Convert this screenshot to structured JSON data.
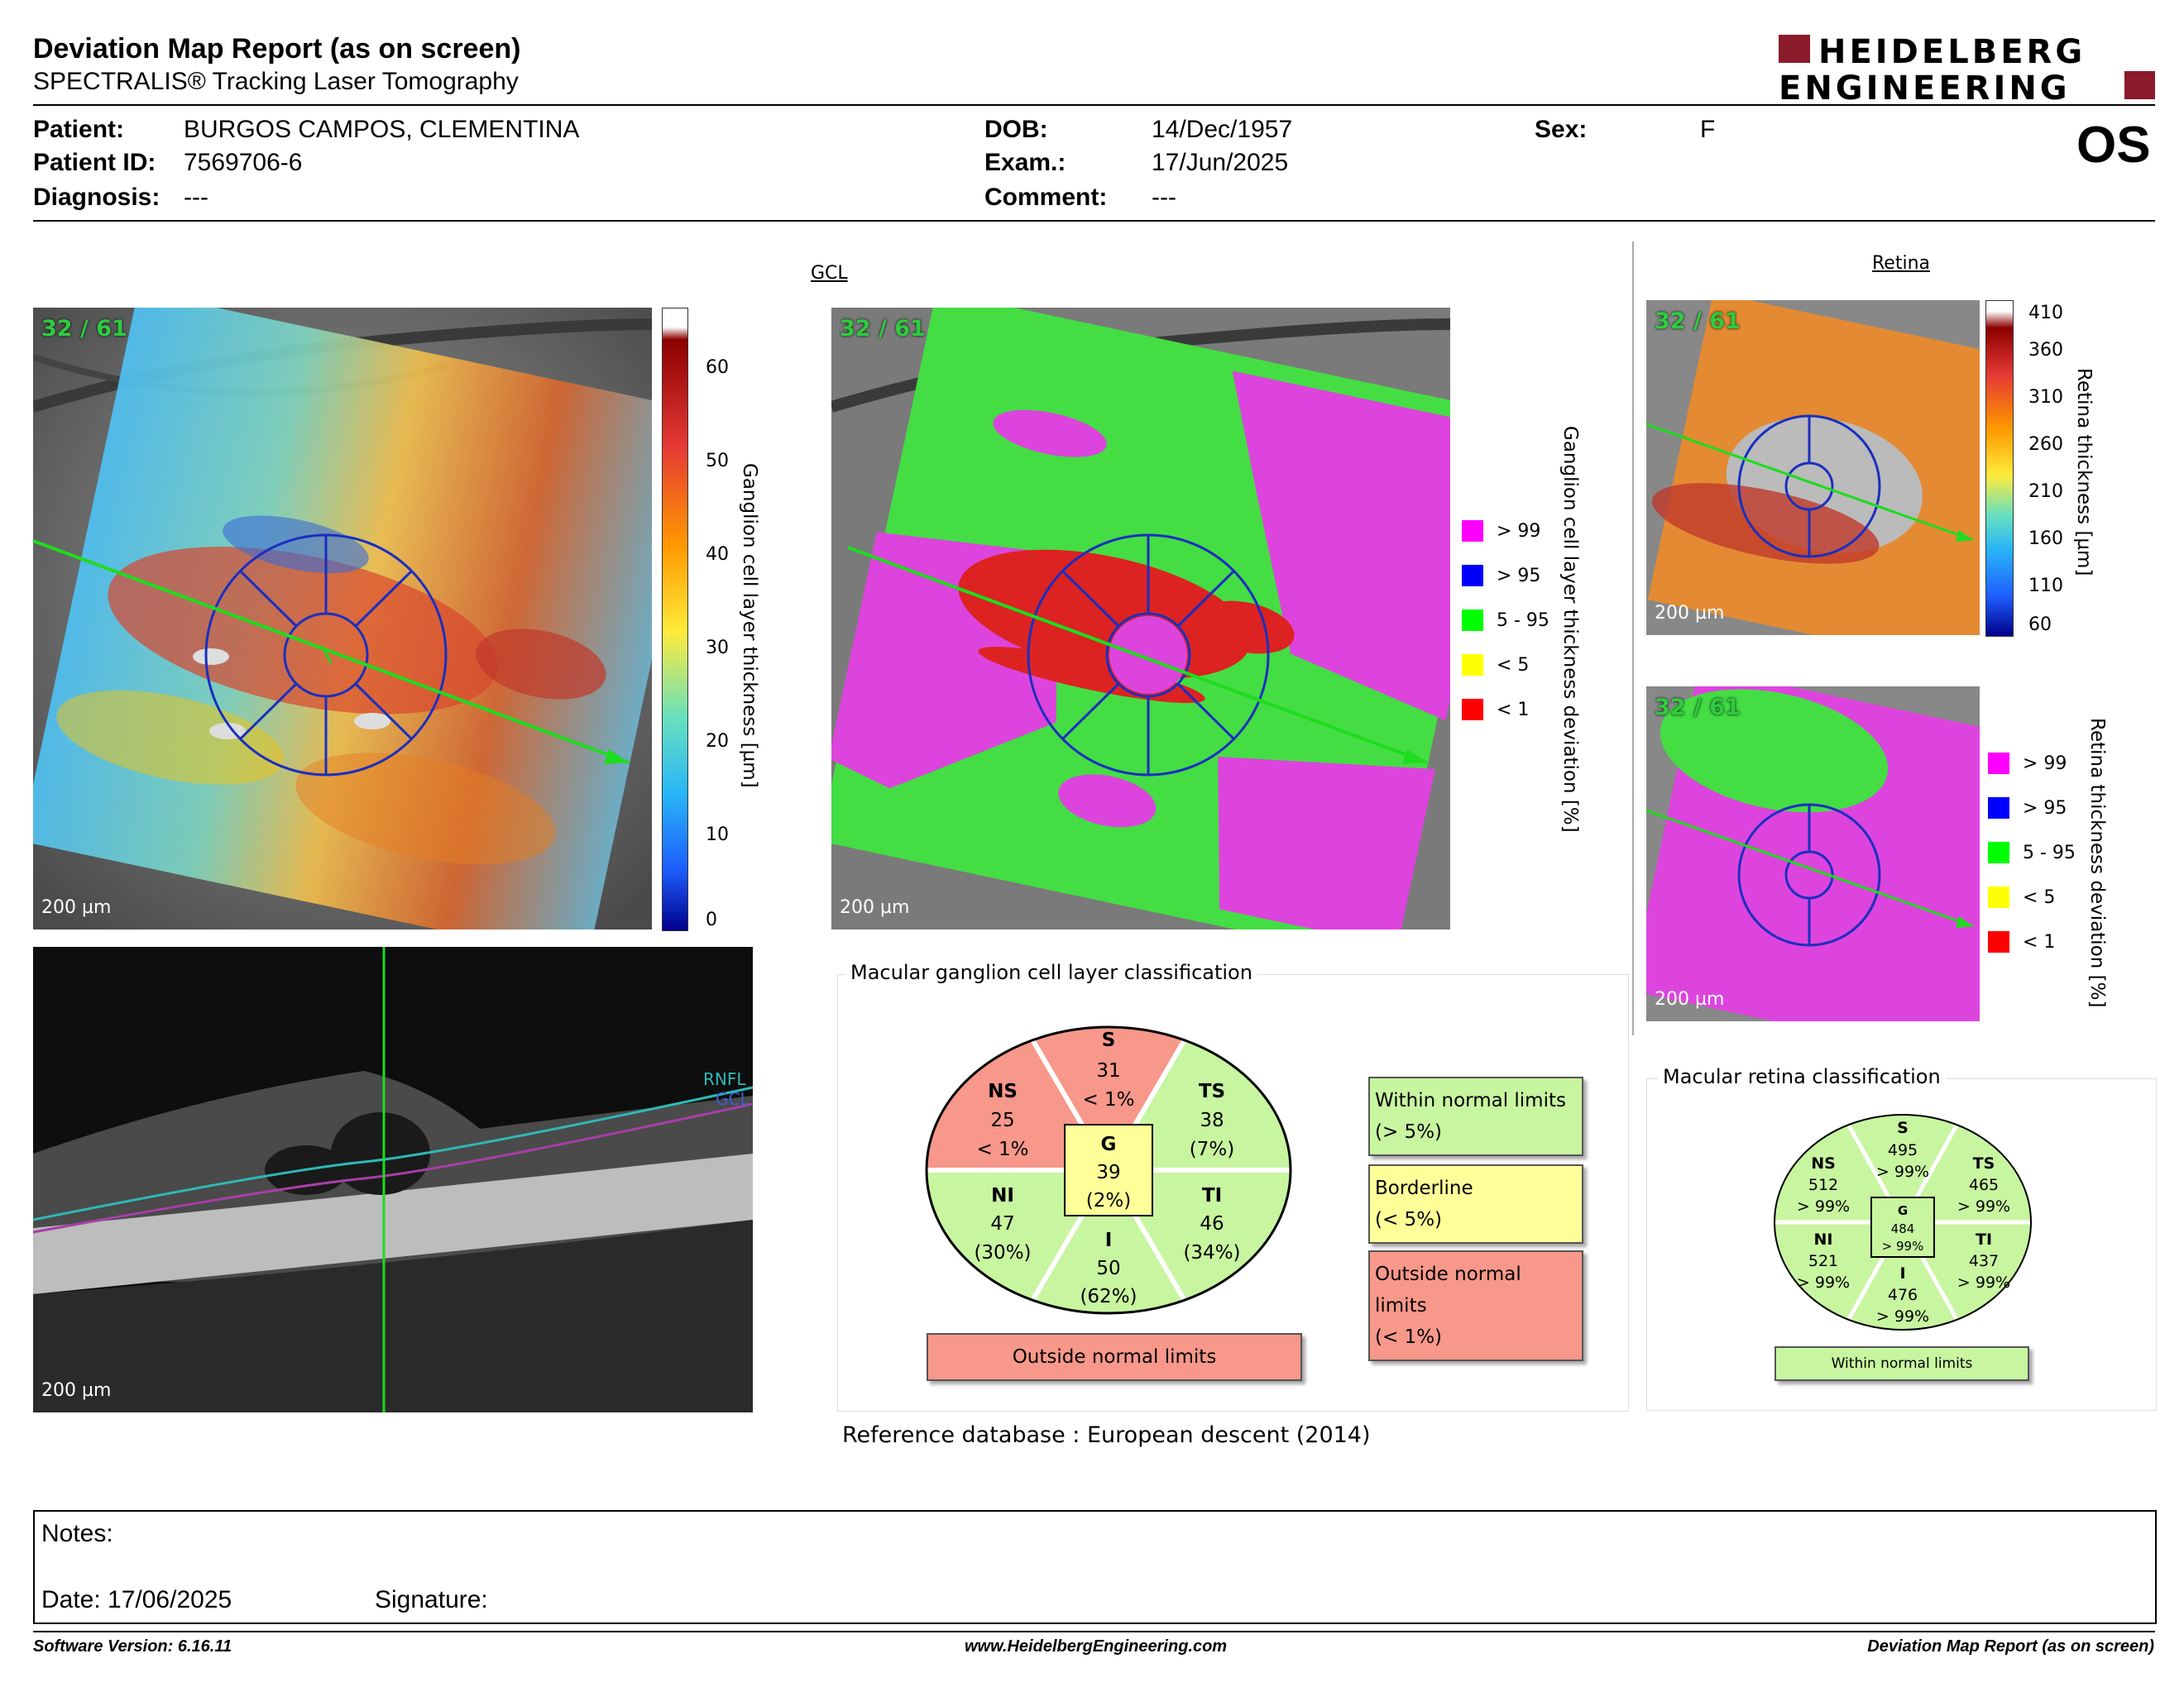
{
  "header": {
    "title": "Deviation Map Report (as on screen)",
    "subtitle": "SPECTRALIS® Tracking Laser Tomography",
    "logo_line1": "HEIDELBERG",
    "logo_line2": "ENGINEERING",
    "brand_color": "#8b1a2b"
  },
  "patient": {
    "patient_label": "Patient:",
    "patient": "BURGOS CAMPOS, CLEMENTINA",
    "id_label": "Patient ID:",
    "id": "7569706-6",
    "diagnosis_label": "Diagnosis:",
    "diagnosis": "---",
    "dob_label": "DOB:",
    "dob": "14/Dec/1957",
    "exam_label": "Exam.:",
    "exam": "17/Jun/2025",
    "comment_label": "Comment:",
    "comment": "---",
    "sex_label": "Sex:",
    "sex": "F",
    "eye": "OS"
  },
  "gcl": {
    "section_title": "GCL",
    "badge": "32 / 61",
    "scale": "200 µm",
    "thickness_axis_label": "Ganglion cell layer thickness [µm]",
    "thickness_ticks": [
      "60",
      "50",
      "40",
      "30",
      "20",
      "10",
      "0"
    ],
    "deviation_axis_label": "Ganglion cell layer thickness deviation [%]",
    "deviation_legend": [
      {
        "label": "> 99",
        "color": "#ff00ff"
      },
      {
        "label": "> 95",
        "color": "#0000ff"
      },
      {
        "label": "5 - 95",
        "color": "#00ff00"
      },
      {
        "label": "< 5",
        "color": "#ffff00"
      },
      {
        "label": "< 1",
        "color": "#ff0000"
      }
    ]
  },
  "bscan": {
    "scale": "200 µm",
    "rnfl_label": "RNFL",
    "gcl_label": "GCL"
  },
  "retina": {
    "section_title": "Retina",
    "badge": "32 / 61",
    "scale": "200 µm",
    "thickness_axis_label": "Retina thickness [µm]",
    "thickness_ticks": [
      "410",
      "360",
      "310",
      "260",
      "210",
      "160",
      "110",
      "60"
    ],
    "deviation_axis_label": "Retina thickness deviation [%]",
    "deviation_legend": [
      {
        "label": "> 99",
        "color": "#ff00ff"
      },
      {
        "label": "> 95",
        "color": "#0000ff"
      },
      {
        "label": "5 - 95",
        "color": "#00ff00"
      },
      {
        "label": "< 5",
        "color": "#ffff00"
      },
      {
        "label": "< 1",
        "color": "#ff0000"
      }
    ]
  },
  "gcl_classification": {
    "panel_title": "Macular ganglion cell layer classification",
    "sectors": {
      "S": {
        "name": "S",
        "value": "31",
        "pct": "< 1%"
      },
      "NS": {
        "name": "NS",
        "value": "25",
        "pct": "< 1%"
      },
      "TS": {
        "name": "TS",
        "value": "38",
        "pct": "(7%)"
      },
      "G": {
        "name": "G",
        "value": "39",
        "pct": "(2%)"
      },
      "NI": {
        "name": "NI",
        "value": "47",
        "pct": "(30%)"
      },
      "TI": {
        "name": "TI",
        "value": "46",
        "pct": "(34%)"
      },
      "I": {
        "name": "I",
        "value": "50",
        "pct": "(62%)"
      }
    },
    "result": "Outside normal limits",
    "legend": {
      "within": "Within normal limits",
      "within_sub": "(> 5%)",
      "borderline": "Borderline",
      "borderline_sub": "(< 5%)",
      "outside": "Outside normal limits",
      "outside_sub": "(< 1%)"
    },
    "colors": {
      "within": "#c8f5a0",
      "borderline": "#ffff99",
      "outside": "#f7988a"
    },
    "reference_label": "Reference database :",
    "reference_value": "European descent (2014)"
  },
  "retina_classification": {
    "panel_title": "Macular retina classification",
    "sectors": {
      "S": {
        "name": "S",
        "value": "495",
        "pct": "> 99%"
      },
      "NS": {
        "name": "NS",
        "value": "512",
        "pct": "> 99%"
      },
      "TS": {
        "name": "TS",
        "value": "465",
        "pct": "> 99%"
      },
      "G": {
        "name": "G",
        "value": "484",
        "pct": "> 99%"
      },
      "NI": {
        "name": "NI",
        "value": "521",
        "pct": "> 99%"
      },
      "TI": {
        "name": "TI",
        "value": "437",
        "pct": "> 99%"
      },
      "I": {
        "name": "I",
        "value": "476",
        "pct": "> 99%"
      }
    },
    "result": "Within normal limits"
  },
  "notes": {
    "notes_label": "Notes:",
    "date_label": "Date: 17/06/2025",
    "signature_label": "Signature:"
  },
  "footer": {
    "software": "Software Version: 6.16.11",
    "website": "www.HeidelbergEngineering.com",
    "report": "Deviation Map Report (as on screen)"
  }
}
